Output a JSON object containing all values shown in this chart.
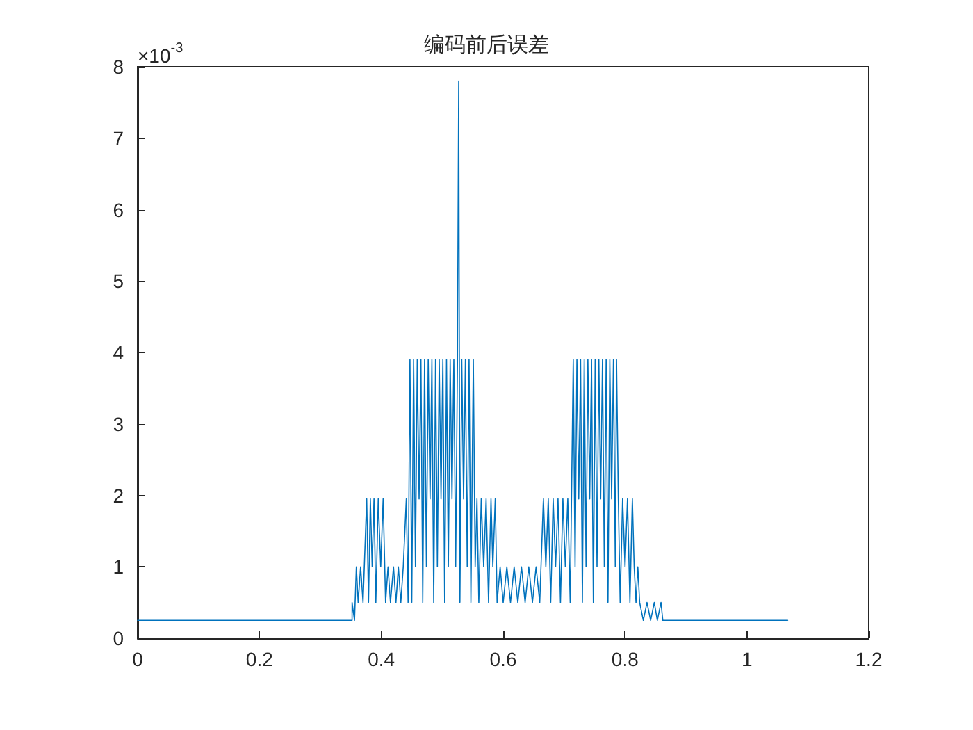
{
  "chart_data": {
    "type": "line",
    "title": "编码前后误差",
    "annotations": [
      "×10$^{-3}$"
    ],
    "xlim": [
      0,
      1.2
    ],
    "xticks": [
      0,
      0.2,
      0.4,
      0.6,
      0.8,
      1,
      1.2
    ],
    "ylim": [
      0,
      8
    ],
    "yticks": [
      0,
      1,
      2,
      3,
      4,
      5,
      6,
      7,
      8
    ],
    "grid": false,
    "marker": "none",
    "line_style": "solid",
    "series": [
      {
        "color": "#0072bd",
        "x": [
          0,
          0.352,
          0.352,
          0.356,
          0.359,
          0.362,
          0.366,
          0.37,
          0.376,
          0.379,
          0.382,
          0.385,
          0.388,
          0.391,
          0.395,
          0.399,
          0.403,
          0.407,
          0.411,
          0.415,
          0.42,
          0.424,
          0.428,
          0.432,
          0.436,
          0.441,
          0.444,
          0.447,
          0.45,
          0.453,
          0.456,
          0.459,
          0.462,
          0.465,
          0.468,
          0.471,
          0.474,
          0.477,
          0.48,
          0.483,
          0.486,
          0.489,
          0.492,
          0.495,
          0.498,
          0.501,
          0.504,
          0.507,
          0.51,
          0.513,
          0.516,
          0.519,
          0.522,
          0.525,
          0.527,
          0.529,
          0.532,
          0.535,
          0.538,
          0.541,
          0.544,
          0.547,
          0.551,
          0.554,
          0.557,
          0.56,
          0.564,
          0.568,
          0.572,
          0.576,
          0.58,
          0.583,
          0.587,
          0.59,
          0.595,
          0.6,
          0.606,
          0.612,
          0.618,
          0.624,
          0.63,
          0.636,
          0.642,
          0.648,
          0.654,
          0.66,
          0.666,
          0.67,
          0.674,
          0.678,
          0.682,
          0.686,
          0.69,
          0.694,
          0.698,
          0.702,
          0.706,
          0.71,
          0.715,
          0.718,
          0.721,
          0.724,
          0.727,
          0.73,
          0.733,
          0.736,
          0.739,
          0.742,
          0.745,
          0.748,
          0.751,
          0.754,
          0.757,
          0.76,
          0.763,
          0.766,
          0.769,
          0.772,
          0.775,
          0.778,
          0.781,
          0.784,
          0.786,
          0.789,
          0.792,
          0.796,
          0.8,
          0.804,
          0.808,
          0.812,
          0.815,
          0.818,
          0.821,
          0.824,
          0.83,
          0.836,
          0.842,
          0.848,
          0.853,
          0.859,
          0.862,
          1.067
        ],
        "values": [
          0.25,
          0.25,
          0.5,
          0.25,
          1,
          0.5,
          1,
          0.5,
          1.95,
          0.5,
          1.95,
          1,
          1.95,
          0.5,
          1.95,
          1,
          1.95,
          0.5,
          1,
          0.5,
          1,
          0.5,
          1,
          0.5,
          1,
          1.95,
          0.5,
          3.9,
          0.5,
          3.9,
          1,
          3.9,
          1.95,
          3.9,
          0.5,
          3.9,
          1,
          3.9,
          1.95,
          3.9,
          0.5,
          3.9,
          1,
          3.9,
          1.95,
          3.9,
          0.5,
          3.9,
          1,
          3.9,
          1.95,
          3.9,
          1,
          3.9,
          7.8,
          0.5,
          3.9,
          1.95,
          3.9,
          1,
          3.9,
          0.5,
          3.9,
          1,
          1.95,
          0.5,
          1.95,
          1,
          1.95,
          0.5,
          1.95,
          1,
          1.95,
          0.5,
          1,
          0.5,
          1,
          0.5,
          1,
          0.5,
          1,
          0.5,
          1,
          0.5,
          1,
          0.5,
          1.95,
          1,
          1.95,
          0.5,
          1.95,
          1,
          1.95,
          0.5,
          1.95,
          1,
          1.95,
          0.5,
          3.9,
          1,
          3.9,
          1.95,
          3.9,
          0.5,
          3.9,
          1,
          3.9,
          1.95,
          3.9,
          0.5,
          3.9,
          1,
          3.9,
          1.95,
          3.9,
          1,
          3.9,
          0.5,
          3.9,
          1.95,
          3.9,
          1,
          3.9,
          1.95,
          0.5,
          1.95,
          1,
          1.95,
          0.5,
          1.95,
          1,
          0.5,
          1,
          0.5,
          0.25,
          0.5,
          0.25,
          0.5,
          0.25,
          0.5,
          0.25,
          0.25
        ]
      }
    ]
  }
}
